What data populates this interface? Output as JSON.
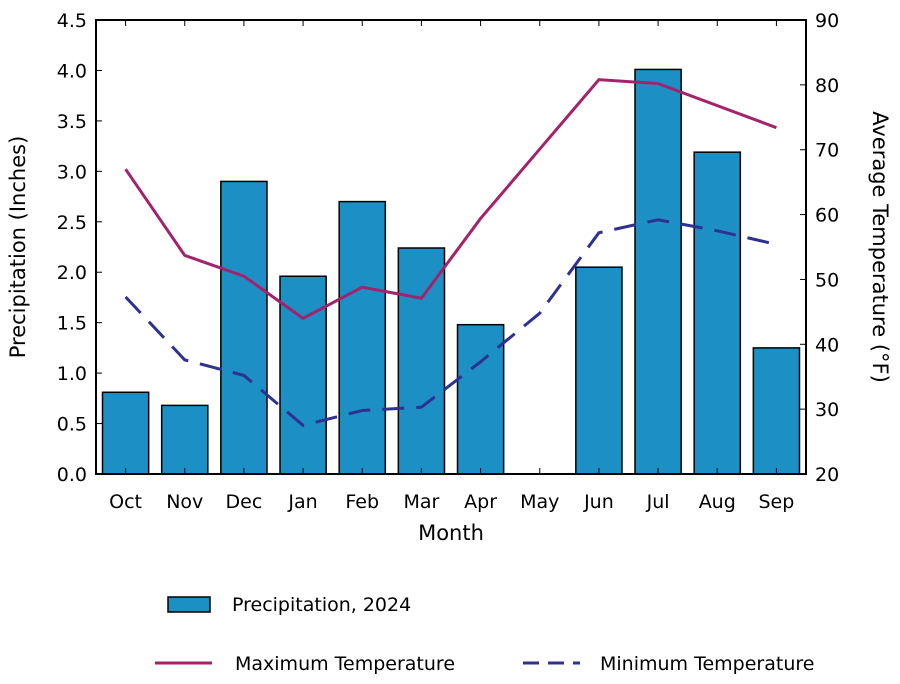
{
  "chart_data": {
    "type": "bar",
    "title": "",
    "xlabel": "Month",
    "ylabel": "Precipitation (Inches)",
    "y2label": "Average Temperature (°F)",
    "categories": [
      "Oct",
      "Nov",
      "Dec",
      "Jan",
      "Feb",
      "Mar",
      "Apr",
      "May",
      "Jun",
      "Jul",
      "Aug",
      "Sep"
    ],
    "ylim": [
      0,
      4.5
    ],
    "y2lim": [
      20,
      90
    ],
    "yticks": [
      "0.0",
      "0.5",
      "1.0",
      "1.5",
      "2.0",
      "2.5",
      "3.0",
      "3.5",
      "4.0",
      "4.5"
    ],
    "y2ticks": [
      "20",
      "30",
      "40",
      "50",
      "60",
      "70",
      "80",
      "90"
    ],
    "grid": false,
    "legend_placement": "bottom",
    "series": [
      {
        "name": "Precipitation, 2024",
        "type": "bar",
        "axis": "left",
        "color": "#1c8fc4",
        "values": [
          0.81,
          0.68,
          2.9,
          1.96,
          2.7,
          2.24,
          1.48,
          0.0,
          2.05,
          4.01,
          3.19,
          1.25
        ]
      },
      {
        "name": "Maximum Temperature",
        "type": "line",
        "axis": "right",
        "color": "#a3226b",
        "style": "solid",
        "values": [
          67.0,
          53.7,
          50.5,
          44.0,
          48.8,
          47.1,
          59.4,
          70.1,
          80.8,
          80.2,
          76.8,
          73.4
        ]
      },
      {
        "name": "Minimum Temperature",
        "type": "line",
        "axis": "right",
        "color": "#2e3192",
        "style": "dashed",
        "values": [
          47.3,
          37.6,
          35.2,
          27.5,
          29.8,
          30.3,
          37.3,
          44.8,
          57.2,
          59.2,
          57.5,
          55.4
        ]
      }
    ]
  }
}
